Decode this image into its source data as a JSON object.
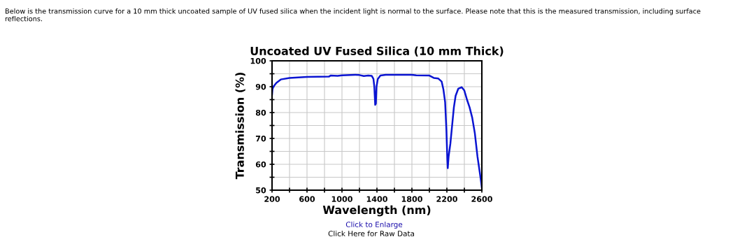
{
  "chart_data": {
    "type": "line",
    "title": "Uncoated UV Fused Silica (10 mm Thick)",
    "xlabel": "Wavelength (nm)",
    "ylabel": "Transmission (%)",
    "annotations": [
      "Below is the transmission curve for a 10 mm thick uncoated sample of UV fused silica when the incident light is normal to the surface. Please note that this is the measured transmission, including surface reflections.",
      "Click to Enlarge",
      "Click Here for Raw Data"
    ],
    "series": [
      {
        "color": "#0a14d2",
        "x": [
          200,
          205,
          215,
          250,
          300,
          400,
          600,
          850,
          870,
          950,
          1000,
          1150,
          1200,
          1250,
          1300,
          1340,
          1360,
          1370,
          1380,
          1388,
          1395,
          1410,
          1440,
          1500,
          1800,
          1850,
          2000,
          2050,
          2100,
          2140,
          2160,
          2180,
          2195,
          2205,
          2210,
          2220,
          2240,
          2260,
          2280,
          2300,
          2330,
          2370,
          2400,
          2430,
          2460,
          2490,
          2520,
          2550,
          2580,
          2600
        ],
        "values": [
          87,
          89,
          90,
          91.5,
          92.8,
          93.4,
          93.8,
          93.9,
          94.3,
          94.2,
          94.4,
          94.6,
          94.5,
          94.1,
          94.3,
          94.2,
          93,
          90,
          83,
          83.5,
          90,
          93,
          94.3,
          94.6,
          94.6,
          94.4,
          94.3,
          93.4,
          93.2,
          92,
          89,
          84,
          73,
          62,
          58.5,
          63,
          68,
          75,
          82,
          86.5,
          89.2,
          89.8,
          88.5,
          85,
          82,
          78,
          72,
          63,
          56,
          51
        ]
      }
    ],
    "xlim": [
      200,
      2600
    ],
    "ylim": [
      50,
      100
    ],
    "xticks": [
      200,
      {
        "value": 400,
        "label": null
      },
      600,
      {
        "value": 800,
        "label": null
      },
      1000,
      {
        "value": 1200,
        "label": null
      },
      1400,
      {
        "value": 1600,
        "label": null
      },
      1800,
      {
        "value": 2000,
        "label": null
      },
      2200,
      {
        "value": 2400,
        "label": null
      },
      2600
    ],
    "yticks": [
      50,
      {
        "value": 55,
        "label": null
      },
      60,
      {
        "value": 65,
        "label": null
      },
      70,
      {
        "value": 75,
        "label": null
      },
      80,
      {
        "value": 85,
        "label": null
      },
      90,
      {
        "value": 95,
        "label": null
      },
      100
    ],
    "grid": true,
    "marker": "none",
    "line_style": "solid"
  }
}
